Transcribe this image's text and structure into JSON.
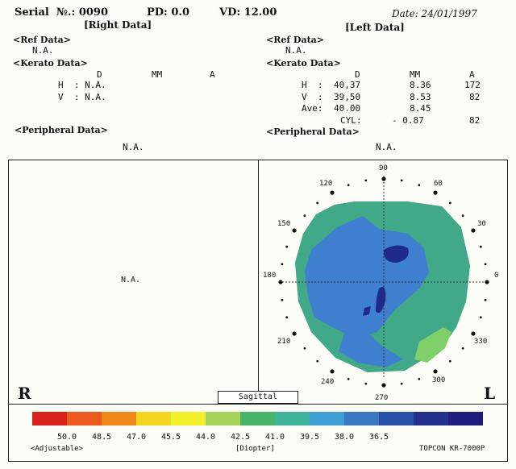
{
  "header": {
    "serial": "Serial  №.: 0090",
    "pd": "PD: 0.0",
    "vd": "VD: 12.00",
    "date": "Date: 24/01/1997"
  },
  "right": {
    "title": "[Right Data]",
    "ref_label": "<Ref Data>",
    "ref_value": "N.A.",
    "kerato_label": "<Kerato Data>",
    "col_d": "D",
    "col_mm": "MM",
    "col_a": "A",
    "h_row": "H  : N.A.",
    "v_row": "V  : N.A.",
    "peripheral_label": "<Peripheral Data>",
    "peripheral_value": "N.A.",
    "map_value": "N.A.",
    "eye_letter": "R"
  },
  "left": {
    "title": "[Left Data]",
    "ref_label": "<Ref Data>",
    "ref_value": "N.A.",
    "kerato_label": "<Kerato Data>",
    "col_d": "D",
    "col_mm": "MM",
    "col_a": "A",
    "rows": [
      {
        "label": "H  :",
        "d": "40,37",
        "mm": "8.36",
        "a": "172"
      },
      {
        "label": "V  :",
        "d": "39,50",
        "mm": "8.53",
        "a": "82"
      },
      {
        "label": "Ave:",
        "d": "40.00",
        "mm": "8.45",
        "a": ""
      },
      {
        "label": "CYL:",
        "d": "- 0.87",
        "mm": "",
        "a": "82"
      }
    ],
    "peripheral_label": "<Peripheral Data>",
    "peripheral_value": "N.A.",
    "eye_letter": "L"
  },
  "map": {
    "mode": "Sagittal",
    "angles": [
      "90",
      "60",
      "30",
      "0",
      "330",
      "300",
      "270",
      "240",
      "210",
      "180",
      "150",
      "120"
    ]
  },
  "scale": {
    "colors": [
      "#d9211c",
      "#ea5a1e",
      "#f08a1f",
      "#f4d51f",
      "#f2ef2b",
      "#a9d45c",
      "#49b36a",
      "#3fb39c",
      "#3f9fd6",
      "#3a78c2",
      "#2a4fa6",
      "#23318e",
      "#1e1e7e"
    ],
    "labels": [
      "50.0",
      "48.5",
      "47.0",
      "45.5",
      "44.0",
      "42.5",
      "41.0",
      "39.5",
      "38.0",
      "36.5"
    ],
    "left_note": "<Adjustable>",
    "unit": "[Diopter]",
    "device": "TOPCON KR-7000P"
  }
}
